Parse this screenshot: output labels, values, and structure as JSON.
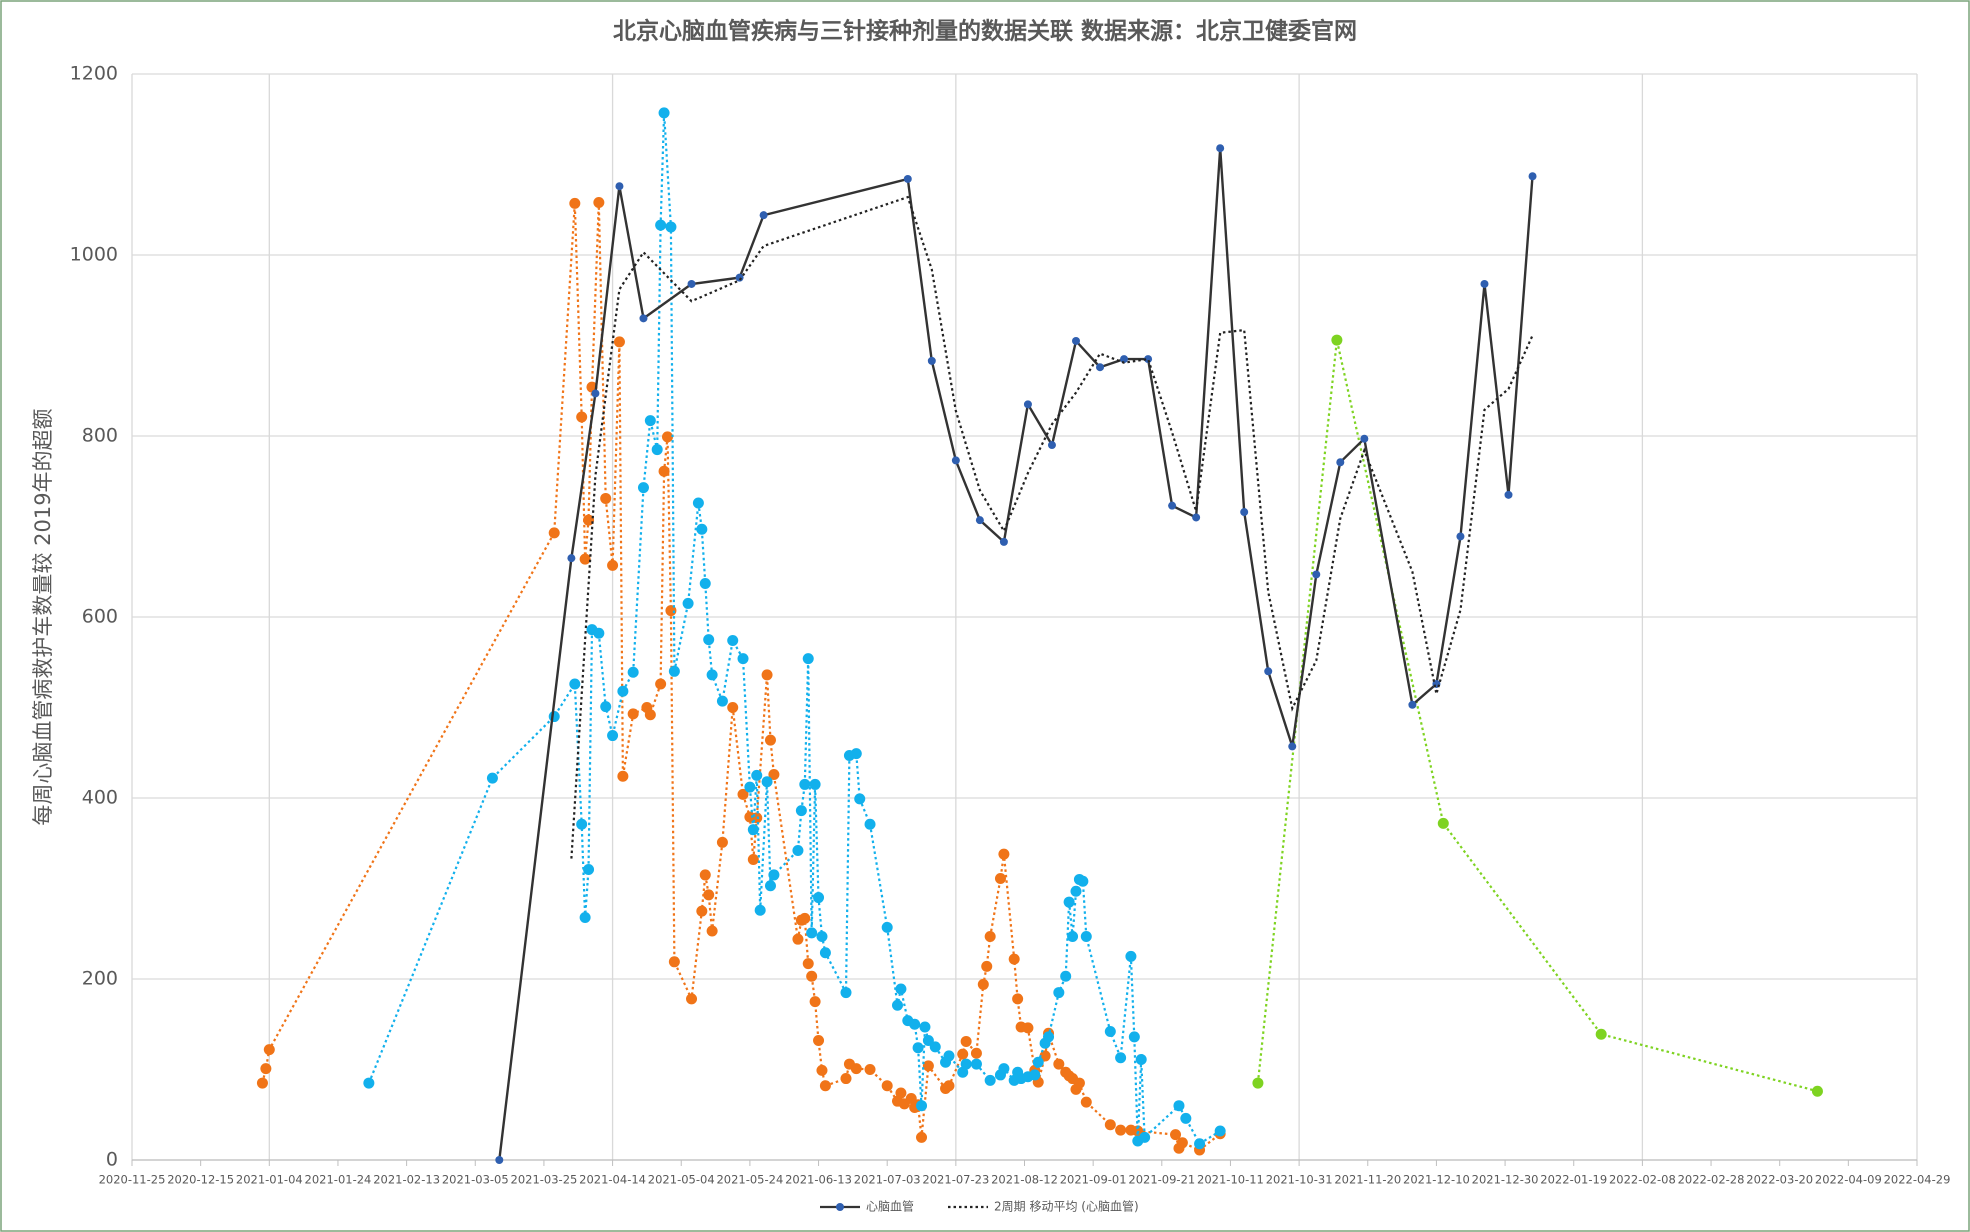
{
  "chart_data": {
    "type": "line",
    "title": "北京心脑血管疾病与三针接种剂量的数据关联  数据来源：北京卫健委官网",
    "y_label": "每周心脑血管病救护车数量较 2019年的超额",
    "xlim": [
      "2020-11-25",
      "2022-04-29"
    ],
    "xticks": [
      "2020-11-25",
      "2020-12-15",
      "2021-01-04",
      "2021-01-24",
      "2021-02-13",
      "2021-03-05",
      "2021-03-25",
      "2021-04-14",
      "2021-05-04",
      "2021-05-24",
      "2021-06-13",
      "2021-07-03",
      "2021-07-23",
      "2021-08-12",
      "2021-09-01",
      "2021-09-21",
      "2021-10-11",
      "2021-10-31",
      "2021-11-20",
      "2021-12-10",
      "2021-12-30",
      "2022-01-19",
      "2022-02-08",
      "2022-02-28",
      "2022-03-20",
      "2022-04-09",
      "2022-04-29"
    ],
    "ylim": [
      0,
      1200
    ],
    "yticks": [
      0,
      200,
      400,
      600,
      800,
      1000,
      1200
    ],
    "grid": true,
    "legend": "bottom",
    "series": [
      {
        "color": "#f07418",
        "style": "dotted",
        "marker": 5.5,
        "x": [
          "2021-01-02",
          "2021-01-03",
          "2021-01-04",
          "2021-03-28",
          "2021-04-03",
          "2021-04-05",
          "2021-04-06",
          "2021-04-07",
          "2021-04-08",
          "2021-04-10",
          "2021-04-12",
          "2021-04-14",
          "2021-04-16",
          "2021-04-17",
          "2021-04-20",
          "2021-04-24",
          "2021-04-25",
          "2021-04-28",
          "2021-04-29",
          "2021-04-30",
          "2021-05-01",
          "2021-05-02",
          "2021-05-07",
          "2021-05-10",
          "2021-05-11",
          "2021-05-12",
          "2021-05-13",
          "2021-05-16",
          "2021-05-19",
          "2021-05-22",
          "2021-05-24",
          "2021-05-25",
          "2021-05-26",
          "2021-05-29",
          "2021-05-30",
          "2021-05-31",
          "2021-06-07",
          "2021-06-08",
          "2021-06-09",
          "2021-06-10",
          "2021-06-11",
          "2021-06-12",
          "2021-06-13",
          "2021-06-14",
          "2021-06-15",
          "2021-06-21",
          "2021-06-22",
          "2021-06-24",
          "2021-06-28",
          "2021-07-03",
          "2021-07-06",
          "2021-07-07",
          "2021-07-08",
          "2021-07-10",
          "2021-07-11",
          "2021-07-12",
          "2021-07-13",
          "2021-07-15",
          "2021-07-20",
          "2021-07-21",
          "2021-07-25",
          "2021-07-26",
          "2021-07-29",
          "2021-07-31",
          "2021-08-01",
          "2021-08-02",
          "2021-08-05",
          "2021-08-06",
          "2021-08-09",
          "2021-08-10",
          "2021-08-11",
          "2021-08-13",
          "2021-08-15",
          "2021-08-16",
          "2021-08-18",
          "2021-08-19",
          "2021-08-22",
          "2021-08-24",
          "2021-08-25",
          "2021-08-26",
          "2021-08-27",
          "2021-08-28",
          "2021-08-30",
          "2021-09-06",
          "2021-09-09",
          "2021-09-12",
          "2021-09-14",
          "2021-09-25",
          "2021-09-26",
          "2021-09-27",
          "2021-10-02",
          "2021-10-08"
        ],
        "values": [
          85,
          101,
          122,
          693,
          1057,
          821,
          664,
          707,
          854,
          1058,
          731,
          657,
          904,
          424,
          493,
          500,
          492,
          526,
          761,
          799,
          607,
          219,
          178,
          275,
          315,
          293,
          253,
          351,
          500,
          404,
          379,
          332,
          378,
          536,
          464,
          426,
          244,
          265,
          267,
          217,
          203,
          175,
          132,
          99,
          82,
          90,
          106,
          101,
          100,
          82,
          65,
          74,
          62,
          68,
          58,
          61,
          25,
          104,
          79,
          82,
          117,
          131,
          118,
          194,
          214,
          247,
          311,
          338,
          222,
          178,
          147,
          146,
          99,
          86,
          115,
          140,
          106,
          97,
          93,
          90,
          78,
          85,
          64,
          39,
          33,
          33,
          32,
          28,
          13,
          19,
          11,
          29
        ]
      },
      {
        "color": "#12b0ec",
        "style": "dotted",
        "marker": 5.5,
        "x": [
          "2021-02-02",
          "2021-03-10",
          "2021-03-28",
          "2021-04-03",
          "2021-04-05",
          "2021-04-06",
          "2021-04-07",
          "2021-04-08",
          "2021-04-10",
          "2021-04-12",
          "2021-04-14",
          "2021-04-17",
          "2021-04-20",
          "2021-04-23",
          "2021-04-25",
          "2021-04-27",
          "2021-04-28",
          "2021-04-29",
          "2021-05-01",
          "2021-05-02",
          "2021-05-06",
          "2021-05-09",
          "2021-05-10",
          "2021-05-11",
          "2021-05-12",
          "2021-05-13",
          "2021-05-16",
          "2021-05-19",
          "2021-05-22",
          "2021-05-24",
          "2021-05-25",
          "2021-05-26",
          "2021-05-27",
          "2021-05-29",
          "2021-05-30",
          "2021-05-31",
          "2021-06-07",
          "2021-06-08",
          "2021-06-09",
          "2021-06-10",
          "2021-06-11",
          "2021-06-12",
          "2021-06-13",
          "2021-06-14",
          "2021-06-15",
          "2021-06-21",
          "2021-06-22",
          "2021-06-24",
          "2021-06-25",
          "2021-06-28",
          "2021-07-03",
          "2021-07-06",
          "2021-07-07",
          "2021-07-09",
          "2021-07-11",
          "2021-07-12",
          "2021-07-13",
          "2021-07-14",
          "2021-07-15",
          "2021-07-17",
          "2021-07-20",
          "2021-07-21",
          "2021-07-25",
          "2021-07-26",
          "2021-07-29",
          "2021-08-02",
          "2021-08-05",
          "2021-08-06",
          "2021-08-09",
          "2021-08-10",
          "2021-08-11",
          "2021-08-13",
          "2021-08-15",
          "2021-08-16",
          "2021-08-18",
          "2021-08-19",
          "2021-08-22",
          "2021-08-24",
          "2021-08-25",
          "2021-08-26",
          "2021-08-27",
          "2021-08-28",
          "2021-08-29",
          "2021-08-30",
          "2021-09-06",
          "2021-09-09",
          "2021-09-12",
          "2021-09-13",
          "2021-09-14",
          "2021-09-15",
          "2021-09-16",
          "2021-09-26",
          "2021-09-28",
          "2021-10-02",
          "2021-10-08"
        ],
        "values": [
          85,
          422,
          490,
          526,
          371,
          268,
          321,
          586,
          582,
          501,
          469,
          518,
          539,
          743,
          817,
          785,
          1033,
          1157,
          1031,
          540,
          615,
          726,
          697,
          637,
          575,
          536,
          507,
          574,
          554,
          412,
          365,
          425,
          276,
          418,
          303,
          315,
          342,
          386,
          415,
          554,
          251,
          415,
          290,
          247,
          229,
          185,
          447,
          449,
          399,
          371,
          257,
          171,
          189,
          154,
          150,
          124,
          60,
          147,
          132,
          125,
          108,
          115,
          97,
          106,
          106,
          88,
          94,
          101,
          88,
          97,
          90,
          92,
          94,
          108,
          129,
          136,
          185,
          203,
          285,
          247,
          297,
          310,
          308,
          247,
          142,
          113,
          225,
          136,
          21,
          111,
          25,
          60,
          46,
          18,
          32
        ]
      },
      {
        "color": "#7ed321",
        "style": "dotted",
        "marker": 5.5,
        "x": [
          "2021-10-19",
          "2021-11-11",
          "2021-12-12",
          "2022-01-27",
          "2022-03-31"
        ],
        "values": [
          85,
          906,
          372,
          139,
          76
        ]
      },
      {
        "name": "心脑血管",
        "color": "#333333",
        "marker_color": "#2f5fb0",
        "style": "solid",
        "marker": 4,
        "x": [
          "2021-03-12",
          "2021-04-02",
          "2021-04-09",
          "2021-04-16",
          "2021-04-23",
          "2021-05-07",
          "2021-05-21",
          "2021-05-28",
          "2021-07-09",
          "2021-07-16",
          "2021-07-23",
          "2021-07-30",
          "2021-08-06",
          "2021-08-13",
          "2021-08-20",
          "2021-08-27",
          "2021-09-03",
          "2021-09-10",
          "2021-09-17",
          "2021-09-24",
          "2021-10-01",
          "2021-10-08",
          "2021-10-15",
          "2021-10-22",
          "2021-10-29",
          "2021-11-05",
          "2021-11-12",
          "2021-11-19",
          "2021-12-03",
          "2021-12-10",
          "2021-12-17",
          "2021-12-24",
          "2021-12-31",
          "2022-01-07"
        ],
        "values": [
          0,
          665,
          847,
          1076,
          930,
          968,
          975,
          1044,
          1084,
          883,
          773,
          707,
          683,
          835,
          790,
          905,
          876,
          885,
          885,
          723,
          710,
          1118,
          716,
          540,
          457,
          647,
          771,
          797,
          503,
          526,
          689,
          968,
          735,
          1087
        ]
      },
      {
        "name": "2周期 移动平均 (心脑血管)",
        "color": "#222222",
        "style": "dotted",
        "marker": 0,
        "x": [
          "2021-04-02",
          "2021-04-09",
          "2021-04-16",
          "2021-04-23",
          "2021-05-07",
          "2021-05-21",
          "2021-05-28",
          "2021-07-09",
          "2021-07-16",
          "2021-07-23",
          "2021-07-30",
          "2021-08-06",
          "2021-08-13",
          "2021-08-20",
          "2021-08-27",
          "2021-09-03",
          "2021-09-10",
          "2021-09-17",
          "2021-09-24",
          "2021-10-01",
          "2021-10-08",
          "2021-10-15",
          "2021-10-22",
          "2021-10-29",
          "2021-11-05",
          "2021-11-12",
          "2021-11-19",
          "2021-12-03",
          "2021-12-10",
          "2021-12-17",
          "2021-12-24",
          "2021-12-31",
          "2022-01-07"
        ],
        "values": [
          333,
          756,
          962,
          1003,
          949,
          972,
          1010,
          1064,
          984,
          828,
          740,
          695,
          759,
          813,
          848,
          891,
          881,
          885,
          804,
          717,
          914,
          917,
          628,
          499,
          552,
          709,
          784,
          650,
          515,
          608,
          829,
          852,
          911
        ]
      }
    ]
  }
}
